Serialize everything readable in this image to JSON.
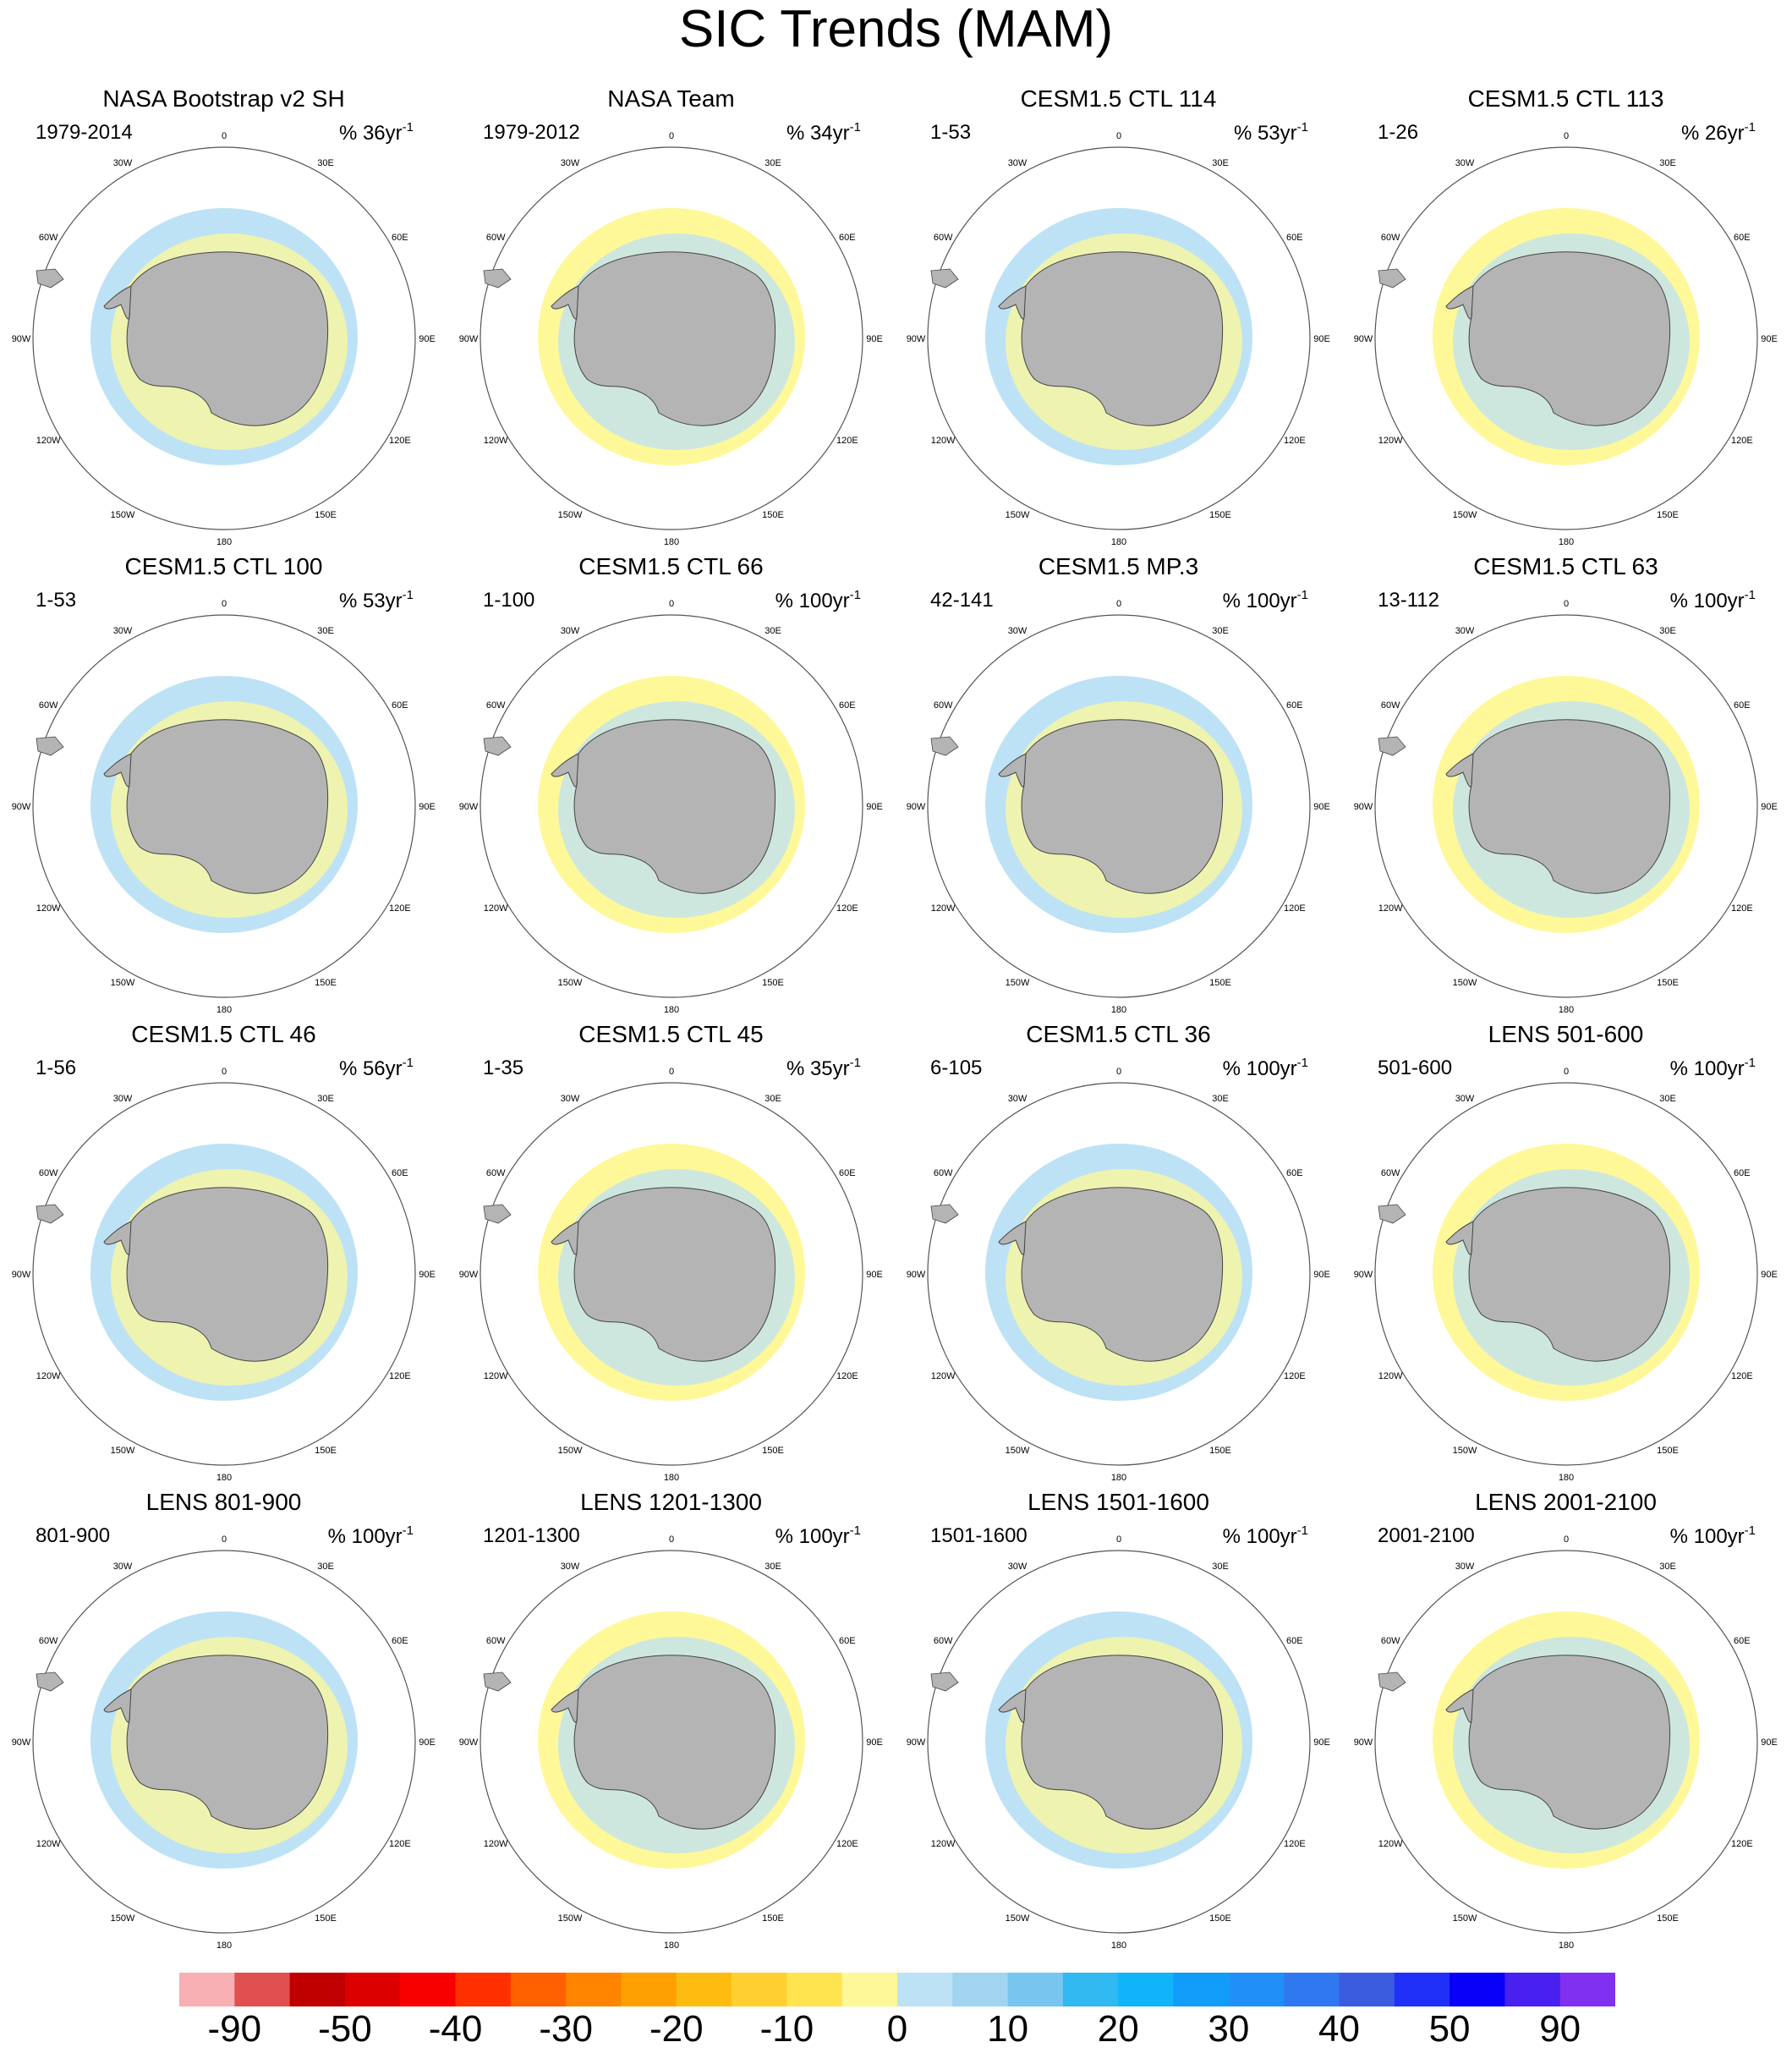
{
  "title": "SIC Trends (MAM)",
  "panels": [
    {
      "title": "NASA Bootstrap v2 SH",
      "period": "1979-2014",
      "units_prefix": "% 36yr",
      "units_sup": "-1"
    },
    {
      "title": "NASA Team",
      "period": "1979-2012",
      "units_prefix": "% 34yr",
      "units_sup": "-1"
    },
    {
      "title": "CESM1.5 CTL 114",
      "period": "1-53",
      "units_prefix": "% 53yr",
      "units_sup": "-1"
    },
    {
      "title": "CESM1.5 CTL 113",
      "period": "1-26",
      "units_prefix": "% 26yr",
      "units_sup": "-1"
    },
    {
      "title": "CESM1.5 CTL 100",
      "period": "1-53",
      "units_prefix": "% 53yr",
      "units_sup": "-1"
    },
    {
      "title": "CESM1.5 CTL 66",
      "period": "1-100",
      "units_prefix": "% 100yr",
      "units_sup": "-1"
    },
    {
      "title": "CESM1.5 MP.3",
      "period": "42-141",
      "units_prefix": "% 100yr",
      "units_sup": "-1"
    },
    {
      "title": "CESM1.5 CTL 63",
      "period": "13-112",
      "units_prefix": "% 100yr",
      "units_sup": "-1"
    },
    {
      "title": "CESM1.5 CTL 46",
      "period": "1-56",
      "units_prefix": "% 56yr",
      "units_sup": "-1"
    },
    {
      "title": "CESM1.5 CTL 45",
      "period": "1-35",
      "units_prefix": "% 35yr",
      "units_sup": "-1"
    },
    {
      "title": "CESM1.5 CTL 36",
      "period": "6-105",
      "units_prefix": "% 100yr",
      "units_sup": "-1"
    },
    {
      "title": "LENS 501-600",
      "period": "501-600",
      "units_prefix": "% 100yr",
      "units_sup": "-1"
    },
    {
      "title": "LENS 801-900",
      "period": "801-900",
      "units_prefix": "% 100yr",
      "units_sup": "-1"
    },
    {
      "title": "LENS 1201-1300",
      "period": "1201-1300",
      "units_prefix": "% 100yr",
      "units_sup": "-1"
    },
    {
      "title": "LENS 1501-1600",
      "period": "1501-1600",
      "units_prefix": "% 100yr",
      "units_sup": "-1"
    },
    {
      "title": "LENS 2001-2100",
      "period": "2001-2100",
      "units_prefix": "% 100yr",
      "units_sup": "-1"
    }
  ],
  "longitude_labels": [
    "0",
    "30E",
    "60E",
    "90E",
    "120E",
    "150E",
    "180",
    "150W",
    "120W",
    "90W",
    "60W",
    "30W"
  ],
  "colorbar": {
    "colors": [
      "#f8b0b4",
      "#e05050",
      "#c00000",
      "#dc0000",
      "#f80000",
      "#ff3000",
      "#ff6000",
      "#ff8400",
      "#ffa000",
      "#ffbc10",
      "#ffd030",
      "#ffe450",
      "#fff898",
      "#bde2f6",
      "#a0d4f0",
      "#78c6f0",
      "#30b8f0",
      "#10b4f8",
      "#109cf8",
      "#2090f8",
      "#3078f0",
      "#3c5ce0",
      "#2030f8",
      "#0800f8",
      "#4820f0",
      "#8030f0"
    ],
    "labels": [
      "-90",
      "-50",
      "-40",
      "-30",
      "-20",
      "-10",
      "0",
      "10",
      "20",
      "30",
      "40",
      "50",
      "90"
    ]
  },
  "palette": {
    "land": "#b4b4b4",
    "ice_pos": "#bde2f6",
    "ice_neg": "#fff898"
  }
}
